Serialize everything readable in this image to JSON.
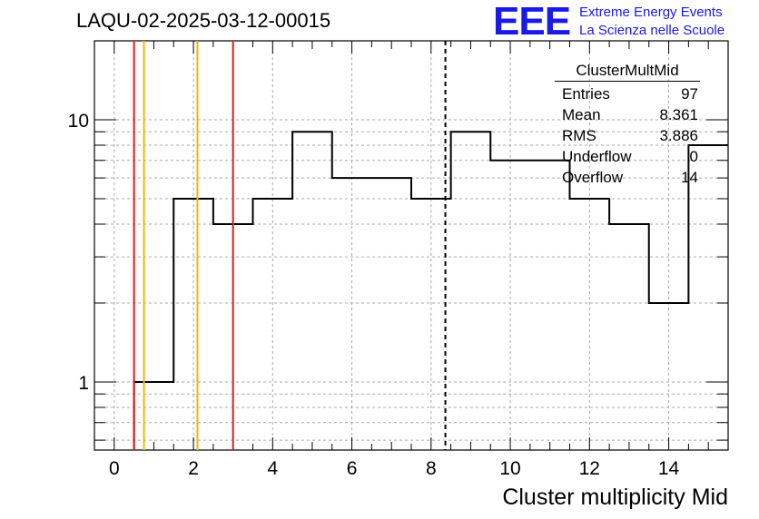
{
  "chart_data": {
    "type": "histogram",
    "title": "LAQU-02-2025-03-12-00015",
    "xlabel": "Cluster multiplicity Mid",
    "ylabel": "",
    "xlim": [
      -0.5,
      15.5
    ],
    "ylim": [
      0.55,
      20
    ],
    "log_y": true,
    "grid": true,
    "x_ticks": [
      "0",
      "2",
      "4",
      "6",
      "8",
      "10",
      "12",
      "14"
    ],
    "y_ticks": [
      "1",
      "10"
    ],
    "bins": [
      {
        "x": 1,
        "value": 1
      },
      {
        "x": 2,
        "value": 5
      },
      {
        "x": 3,
        "value": 4
      },
      {
        "x": 4,
        "value": 5
      },
      {
        "x": 5,
        "value": 9
      },
      {
        "x": 6,
        "value": 6
      },
      {
        "x": 7,
        "value": 6
      },
      {
        "x": 8,
        "value": 5
      },
      {
        "x": 9,
        "value": 9
      },
      {
        "x": 10,
        "value": 7
      },
      {
        "x": 11,
        "value": 7
      },
      {
        "x": 12,
        "value": 5
      },
      {
        "x": 13,
        "value": 4
      },
      {
        "x": 14,
        "value": 2
      },
      {
        "x": 15,
        "value": 8
      }
    ],
    "vertical_lines": [
      {
        "x": 0.5,
        "color": "#e31a1c",
        "style": "solid"
      },
      {
        "x": 0.75,
        "color": "#f2b705",
        "style": "solid"
      },
      {
        "x": 2.1,
        "color": "#f2b705",
        "style": "solid"
      },
      {
        "x": 3.0,
        "color": "#e31a1c",
        "style": "solid"
      },
      {
        "x": 8.361,
        "color": "#000000",
        "style": "dashed"
      }
    ],
    "stats_box": {
      "name": "ClusterMultMid",
      "rows": [
        {
          "label": "Entries",
          "value": "97"
        },
        {
          "label": "Mean",
          "value": "8.361"
        },
        {
          "label": "RMS",
          "value": "3.886"
        },
        {
          "label": "Underflow",
          "value": "0"
        },
        {
          "label": "Overflow",
          "value": "14"
        }
      ]
    }
  },
  "logo": {
    "mark": "EEE",
    "line1": "Extreme Energy Events",
    "line2": "La Scienza nelle Scuole"
  }
}
